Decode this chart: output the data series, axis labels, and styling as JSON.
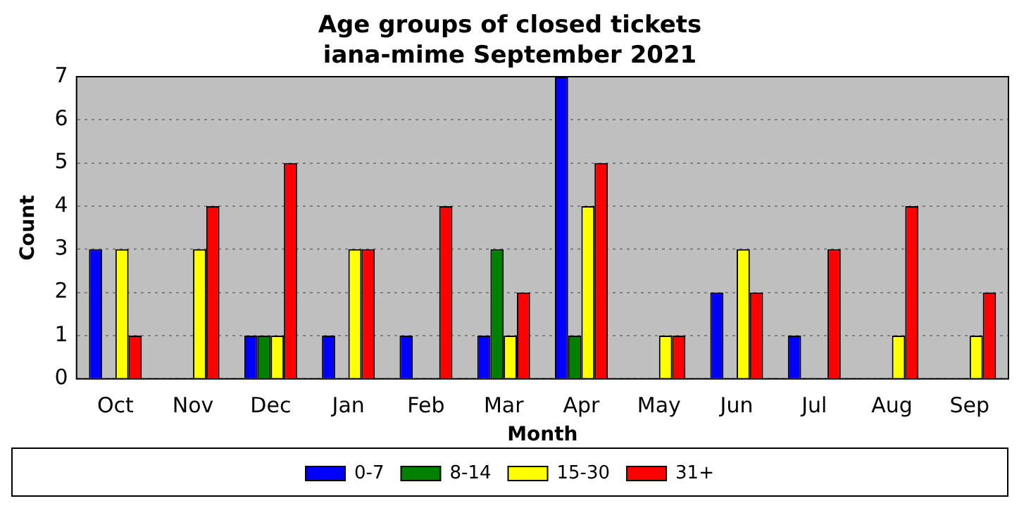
{
  "chart_data": {
    "type": "bar",
    "title": "Age groups of closed tickets\niana-mime September 2021",
    "xlabel": "Month",
    "ylabel": "Count",
    "categories": [
      "Oct",
      "Nov",
      "Dec",
      "Jan",
      "Feb",
      "Mar",
      "Apr",
      "May",
      "Jun",
      "Jul",
      "Aug",
      "Sep"
    ],
    "series": [
      {
        "name": "0-7",
        "color": "#0000ff",
        "values": [
          3,
          0,
          1,
          1,
          1,
          1,
          7,
          0,
          2,
          1,
          0,
          0
        ]
      },
      {
        "name": "8-14",
        "color": "#008000",
        "values": [
          0,
          0,
          1,
          0,
          0,
          3,
          1,
          0,
          0,
          0,
          0,
          0
        ]
      },
      {
        "name": "15-30",
        "color": "#ffff00",
        "values": [
          3,
          3,
          1,
          3,
          0,
          1,
          4,
          1,
          3,
          0,
          1,
          1
        ]
      },
      {
        "name": "31+",
        "color": "#ff0000",
        "values": [
          1,
          4,
          5,
          3,
          4,
          2,
          5,
          1,
          2,
          3,
          4,
          2
        ]
      }
    ],
    "ylim": [
      0,
      7
    ],
    "yticks": [
      0,
      1,
      2,
      3,
      4,
      5,
      6,
      7
    ],
    "grid": "y",
    "legend": "bottom"
  }
}
